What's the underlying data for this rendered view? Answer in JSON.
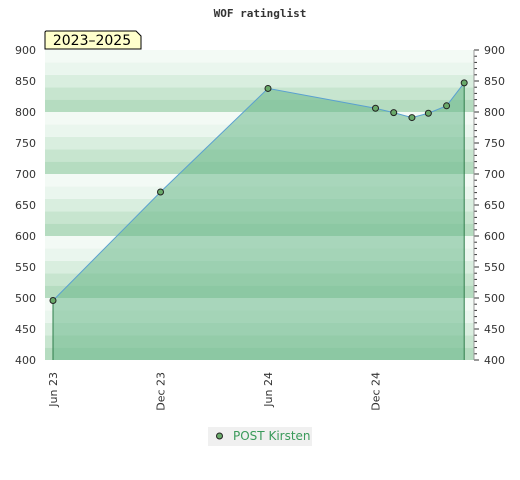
{
  "chart_data": {
    "type": "area",
    "title": "WOF ratinglist",
    "badge": "2023–2025",
    "xlabel": "",
    "ylabel": "",
    "ylim": [
      400,
      900
    ],
    "yticks": [
      400,
      450,
      500,
      550,
      600,
      650,
      700,
      750,
      800,
      850,
      900
    ],
    "xlim": [
      "2023-06-01",
      "2025-06-01"
    ],
    "xticks": [
      {
        "label": "Jun 23",
        "date": "2023-06-01"
      },
      {
        "label": "Dec 23",
        "date": "2023-12-01"
      },
      {
        "label": "Jun 24",
        "date": "2024-06-01"
      },
      {
        "label": "Dec 24",
        "date": "2024-12-01"
      }
    ],
    "series": [
      {
        "name": "POST Kirsten",
        "color": "#5aa0d0",
        "fill_color": "#6ab88a",
        "marker_color": "#6aaa6a",
        "points": [
          {
            "x": "2023-06-01",
            "y": 496
          },
          {
            "x": "2023-12-01",
            "y": 671
          },
          {
            "x": "2024-06-01",
            "y": 838
          },
          {
            "x": "2024-12-01",
            "y": 806
          },
          {
            "x": "2025-01-01",
            "y": 799
          },
          {
            "x": "2025-02-01",
            "y": 791
          },
          {
            "x": "2025-03-01",
            "y": 798
          },
          {
            "x": "2025-04-01",
            "y": 810
          },
          {
            "x": "2025-05-01",
            "y": 847
          }
        ]
      }
    ],
    "grid": true,
    "legend_position": "bottom-center",
    "legend_text_color": "#3a9a5a"
  }
}
